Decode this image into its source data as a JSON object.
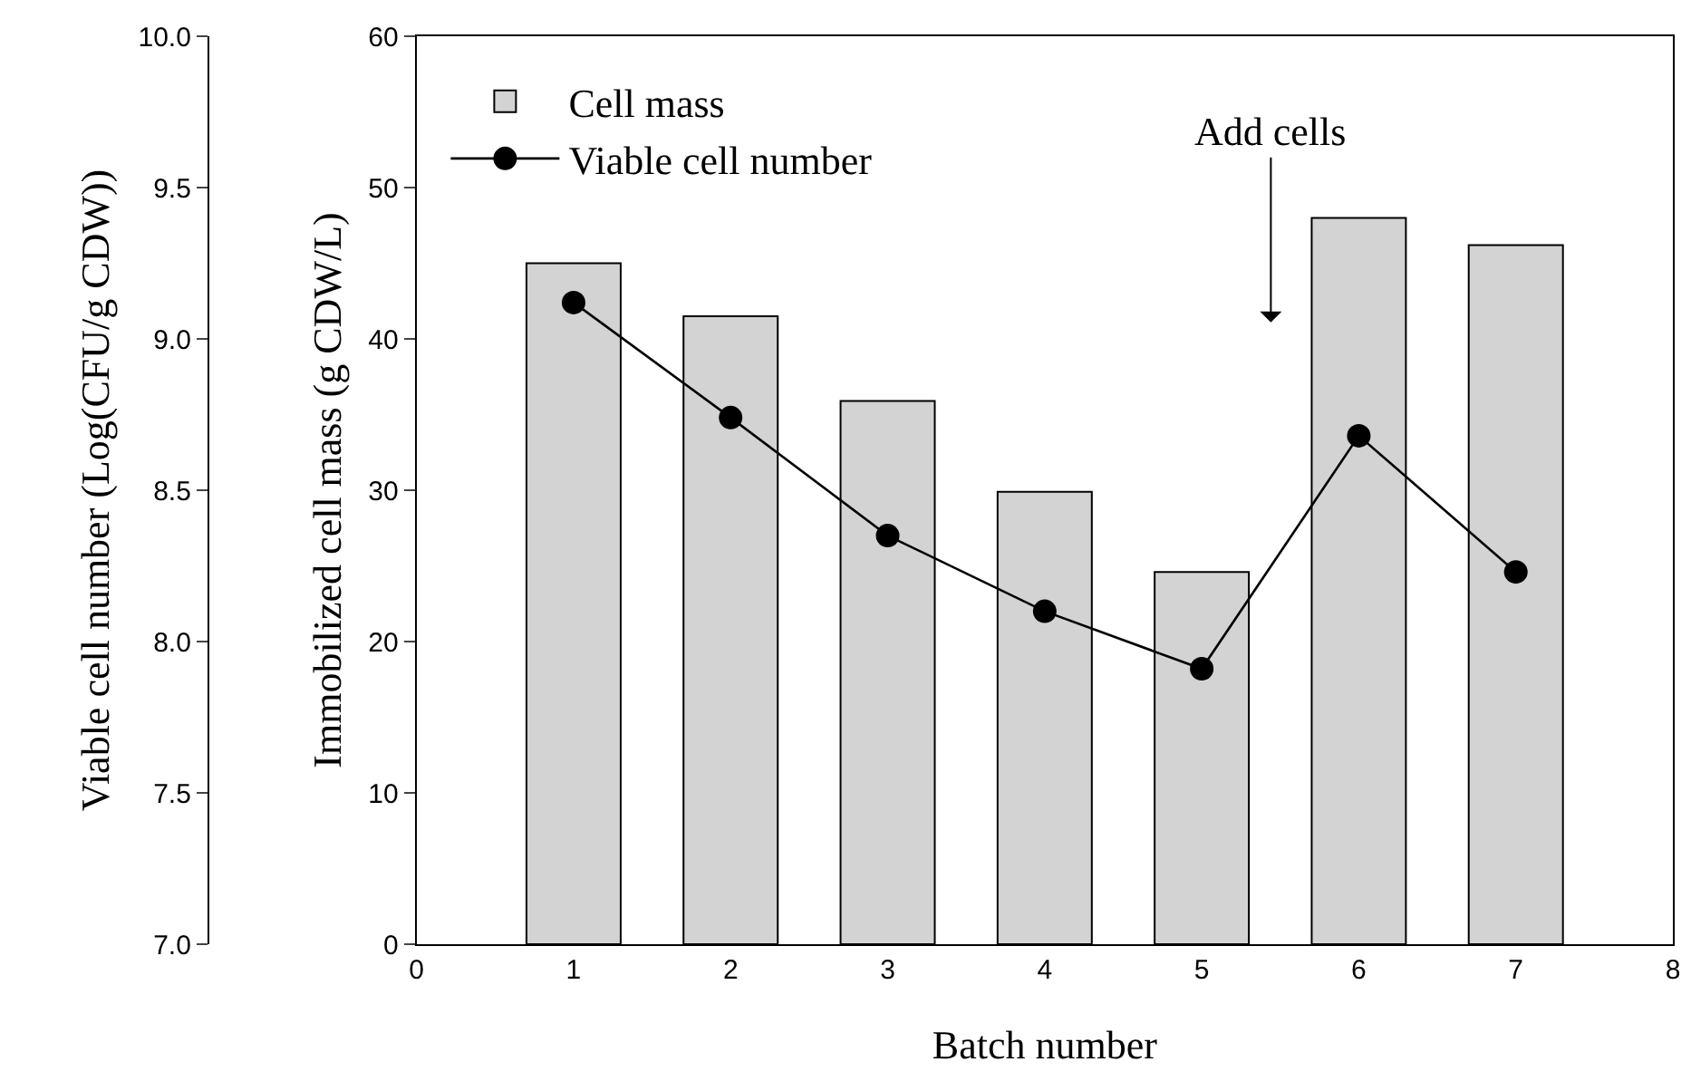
{
  "chart_data": {
    "type": "bar",
    "xlabel": "Batch number",
    "ylabel": "Immobilized cell mass (g CDW/L)",
    "y2label": "Viable cell number (Log(CFU/g CDW))",
    "x": [
      1,
      2,
      3,
      4,
      5,
      6,
      7
    ],
    "series": [
      {
        "name": "Cell mass",
        "color": "#d3d3d3",
        "values": [
          45.0,
          41.5,
          35.9,
          29.9,
          24.6,
          48.0,
          46.2
        ]
      },
      {
        "name": "Viable cell number",
        "type": "line",
        "axis": "y2",
        "color": "#000000",
        "marker": "circle",
        "line_style": "solid",
        "values": [
          9.12,
          8.74,
          8.35,
          8.1,
          7.91,
          8.68,
          8.23
        ]
      }
    ],
    "xlim": [
      0,
      8
    ],
    "xticks": [
      0,
      1,
      2,
      3,
      4,
      5,
      6,
      7,
      8
    ],
    "ylim": [
      0,
      60
    ],
    "yticks": [
      0,
      10,
      20,
      30,
      40,
      50,
      60
    ],
    "y2lim": [
      7,
      10
    ],
    "y2ticks": [
      {
        "value": 7,
        "label": "7.0"
      },
      {
        "value": 7.5,
        "label": "7.5"
      },
      {
        "value": 8,
        "label": "8.0"
      },
      {
        "value": 8.5,
        "label": "8.5"
      },
      {
        "value": 9,
        "label": "9.0"
      },
      {
        "value": 9.5,
        "label": "9.5"
      },
      {
        "value": 10,
        "label": "10.0"
      }
    ],
    "annotations": [
      "Add cells"
    ],
    "legend": "top left"
  }
}
